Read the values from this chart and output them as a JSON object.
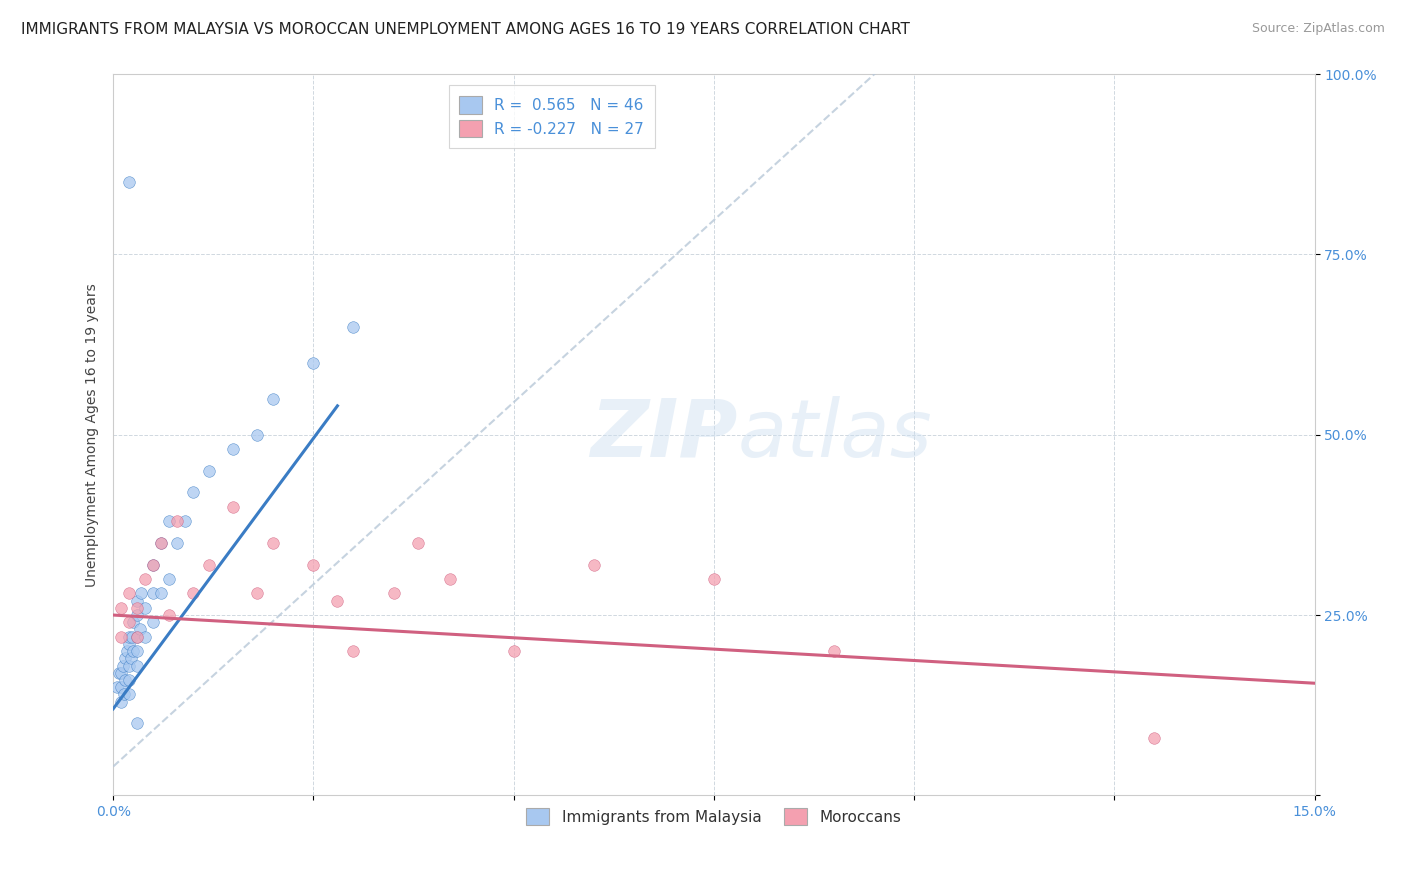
{
  "title": "IMMIGRANTS FROM MALAYSIA VS MOROCCAN UNEMPLOYMENT AMONG AGES 16 TO 19 YEARS CORRELATION CHART",
  "source": "Source: ZipAtlas.com",
  "ylabel": "Unemployment Among Ages 16 to 19 years",
  "watermark": "ZIPatlas",
  "legend_r1": "R =  0.565",
  "legend_n1": "N = 46",
  "legend_r2": "R = -0.227",
  "legend_n2": "N = 27",
  "xlim": [
    0.0,
    0.15
  ],
  "ylim": [
    0.0,
    1.0
  ],
  "color_blue": "#a8c8f0",
  "color_pink": "#f4a0b0",
  "trend_color_blue": "#3a7cc4",
  "trend_color_pink": "#d06080",
  "trend_color_gray": "#b8c8d8",
  "blue_x": [
    0.0005,
    0.0007,
    0.001,
    0.001,
    0.001,
    0.0012,
    0.0013,
    0.0015,
    0.0015,
    0.0017,
    0.002,
    0.002,
    0.002,
    0.002,
    0.002,
    0.0022,
    0.0023,
    0.0025,
    0.0025,
    0.003,
    0.003,
    0.003,
    0.003,
    0.003,
    0.0033,
    0.0035,
    0.004,
    0.004,
    0.005,
    0.005,
    0.005,
    0.006,
    0.006,
    0.007,
    0.007,
    0.008,
    0.009,
    0.01,
    0.012,
    0.015,
    0.018,
    0.02,
    0.025,
    0.03,
    0.002,
    0.003
  ],
  "blue_y": [
    0.15,
    0.17,
    0.13,
    0.15,
    0.17,
    0.18,
    0.14,
    0.16,
    0.19,
    0.2,
    0.14,
    0.16,
    0.18,
    0.21,
    0.22,
    0.19,
    0.22,
    0.2,
    0.24,
    0.18,
    0.2,
    0.22,
    0.25,
    0.27,
    0.23,
    0.28,
    0.22,
    0.26,
    0.24,
    0.28,
    0.32,
    0.28,
    0.35,
    0.3,
    0.38,
    0.35,
    0.38,
    0.42,
    0.45,
    0.48,
    0.5,
    0.55,
    0.6,
    0.65,
    0.85,
    0.1
  ],
  "pink_x": [
    0.001,
    0.001,
    0.002,
    0.002,
    0.003,
    0.003,
    0.004,
    0.005,
    0.006,
    0.007,
    0.008,
    0.01,
    0.012,
    0.015,
    0.018,
    0.02,
    0.025,
    0.028,
    0.03,
    0.035,
    0.038,
    0.042,
    0.05,
    0.06,
    0.075,
    0.09,
    0.13
  ],
  "pink_y": [
    0.22,
    0.26,
    0.24,
    0.28,
    0.22,
    0.26,
    0.3,
    0.32,
    0.35,
    0.25,
    0.38,
    0.28,
    0.32,
    0.4,
    0.28,
    0.35,
    0.32,
    0.27,
    0.2,
    0.28,
    0.35,
    0.3,
    0.2,
    0.32,
    0.3,
    0.2,
    0.08
  ],
  "title_fontsize": 11,
  "source_fontsize": 9,
  "axis_label_fontsize": 10,
  "tick_fontsize": 10,
  "legend_fontsize": 11
}
